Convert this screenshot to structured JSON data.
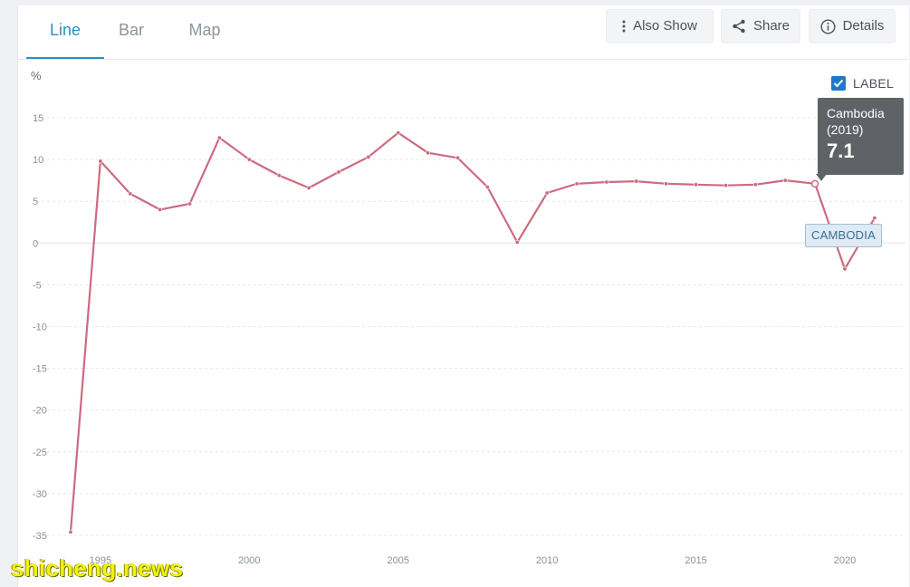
{
  "tabs": [
    {
      "label": "Line",
      "active": true
    },
    {
      "label": "Bar",
      "active": false
    },
    {
      "label": "Map",
      "active": false
    }
  ],
  "toolbar": {
    "also_show_label": "Also Show",
    "share_label": "Share",
    "details_label": "Details"
  },
  "label_toggle": {
    "text": "LABEL",
    "checked": true
  },
  "tooltip": {
    "country": "Cambodia",
    "year": "(2019)",
    "value": "7.1"
  },
  "series_tag": "CAMBODIA",
  "watermark": "shicheng.news",
  "colors": {
    "accent": "#2b8fc4",
    "series": "#cc6b80",
    "checkbox": "#1f78c8"
  },
  "chart_data": {
    "type": "line",
    "ylabel": "%",
    "ylim": [
      -35,
      15
    ],
    "xlim": [
      1994,
      2021
    ],
    "yticks": [
      15,
      10,
      5,
      0,
      -5,
      -10,
      -15,
      -20,
      -25,
      -30,
      -35
    ],
    "xticks": [
      1995,
      2000,
      2005,
      2010,
      2015,
      2020
    ],
    "grid": true,
    "series": [
      {
        "name": "Cambodia",
        "x": [
          1994,
          1995,
          1996,
          1997,
          1998,
          1999,
          2000,
          2001,
          2002,
          2003,
          2004,
          2005,
          2006,
          2007,
          2008,
          2009,
          2010,
          2011,
          2012,
          2013,
          2014,
          2015,
          2016,
          2017,
          2018,
          2019,
          2020,
          2021
        ],
        "values": [
          -34.6,
          9.8,
          5.9,
          4.0,
          4.7,
          12.6,
          10.0,
          8.1,
          6.6,
          8.5,
          10.3,
          13.2,
          10.8,
          10.2,
          6.7,
          0.1,
          6.0,
          7.1,
          7.3,
          7.4,
          7.1,
          7.0,
          6.9,
          7.0,
          7.5,
          7.1,
          -3.1,
          3.0
        ]
      }
    ]
  }
}
